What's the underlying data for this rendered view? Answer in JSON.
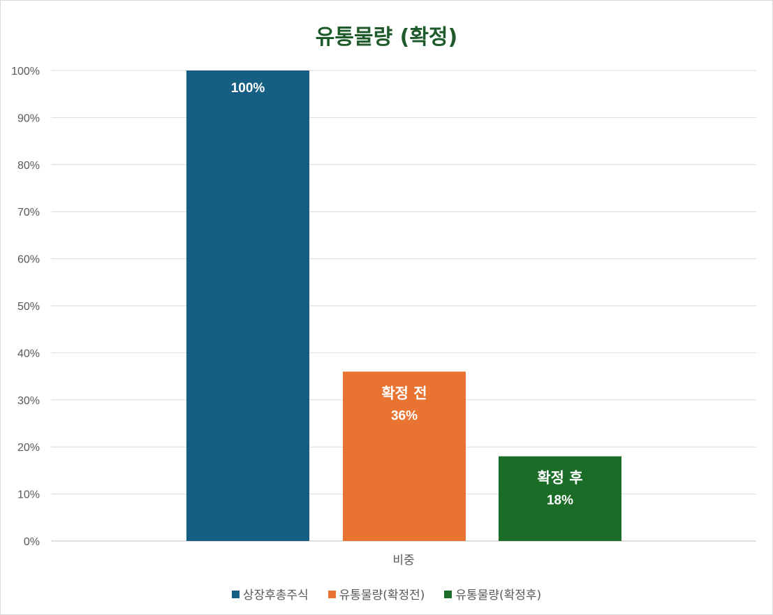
{
  "chart_data": {
    "type": "bar",
    "title": "유통물량 (확정)",
    "categories": [
      "비중"
    ],
    "ylim": [
      0,
      100
    ],
    "yticks": [
      "0%",
      "10%",
      "20%",
      "30%",
      "40%",
      "50%",
      "60%",
      "70%",
      "80%",
      "90%",
      "100%"
    ],
    "grid": true,
    "legend_position": "bottom",
    "series": [
      {
        "name": "상장후총주식",
        "values": [
          100
        ],
        "color": "#175f82",
        "label_name": "",
        "label_value": "100%"
      },
      {
        "name": "유통물량(확정전)",
        "values": [
          36
        ],
        "color": "#e97331",
        "label_name": "확정 전",
        "label_value": "36%"
      },
      {
        "name": "유통물량(확정후)",
        "values": [
          18
        ],
        "color": "#1a6c26",
        "label_name": "확정 후",
        "label_value": "18%"
      }
    ]
  }
}
